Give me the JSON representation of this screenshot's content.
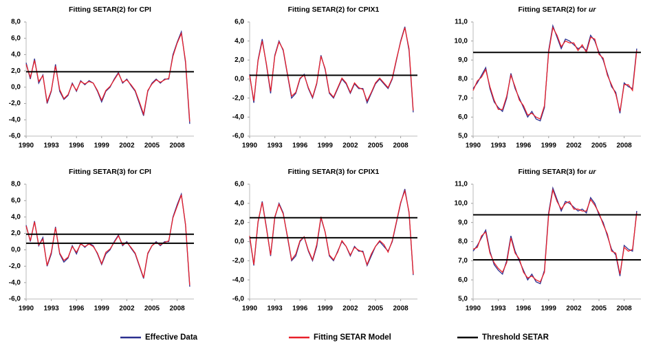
{
  "chart_data": [
    {
      "type": "line",
      "title": "Fitting SETAR(2) for CPI",
      "x": [
        1990,
        1990.5,
        1991,
        1991.5,
        1992,
        1992.5,
        1993,
        1993.5,
        1994,
        1994.5,
        1995,
        1995.5,
        1996,
        1996.5,
        1997,
        1997.5,
        1998,
        1998.5,
        1999,
        1999.5,
        2000,
        2000.5,
        2001,
        2001.5,
        2002,
        2002.5,
        2003,
        2003.5,
        2004,
        2004.5,
        2005,
        2005.5,
        2006,
        2006.5,
        2007,
        2007.5,
        2008,
        2008.5,
        2009,
        2009.5
      ],
      "series": [
        {
          "color": "#2b2f8f",
          "values": [
            3.0,
            1.0,
            3.5,
            0.5,
            1.5,
            -2.0,
            -0.5,
            2.8,
            -0.5,
            -1.5,
            -1.0,
            0.5,
            -0.5,
            0.8,
            0.3,
            0.8,
            0.5,
            -0.5,
            -1.8,
            -0.5,
            0.0,
            1.0,
            1.8,
            0.5,
            1.0,
            0.2,
            -0.5,
            -2.0,
            -3.5,
            -0.5,
            0.5,
            1.0,
            0.5,
            1.0,
            1.0,
            4.0,
            5.5,
            6.8,
            3.0,
            -4.5
          ]
        },
        {
          "color": "#e8202a",
          "values": [
            2.8,
            1.2,
            3.3,
            0.7,
            1.4,
            -1.8,
            -0.4,
            2.6,
            -0.3,
            -1.4,
            -0.9,
            0.4,
            -0.4,
            0.7,
            0.4,
            0.7,
            0.5,
            -0.4,
            -1.6,
            -0.4,
            0.1,
            0.9,
            1.7,
            0.6,
            0.9,
            0.3,
            -0.4,
            -1.8,
            -3.3,
            -0.4,
            0.4,
            0.9,
            0.6,
            0.9,
            1.1,
            3.8,
            5.4,
            6.6,
            3.2,
            -4.2
          ]
        }
      ],
      "thresholds": [
        1.9
      ],
      "xlim": [
        1990,
        2010
      ],
      "xticks": [
        1990,
        1993,
        1996,
        1999,
        2002,
        2005,
        2008
      ],
      "ylim": [
        -6,
        8
      ],
      "yticks": [
        {
          "value": -6,
          "label": "-6,0"
        },
        {
          "value": -4,
          "label": "-4,0"
        },
        {
          "value": -2,
          "label": "-2,0"
        },
        {
          "value": 0,
          "label": "0,0"
        },
        {
          "value": 2,
          "label": "2,0"
        },
        {
          "value": 4,
          "label": "4,0"
        },
        {
          "value": 6,
          "label": "6,0"
        },
        {
          "value": 8,
          "label": "8,0"
        }
      ]
    },
    {
      "type": "line",
      "title": "Fitting SETAR(2) for CPIX1",
      "x": [
        1990,
        1990.5,
        1991,
        1991.5,
        1992,
        1992.5,
        1993,
        1993.5,
        1994,
        1994.5,
        1995,
        1995.5,
        1996,
        1996.5,
        1997,
        1997.5,
        1998,
        1998.5,
        1999,
        1999.5,
        2000,
        2000.5,
        2001,
        2001.5,
        2002,
        2002.5,
        2003,
        2003.5,
        2004,
        2004.5,
        2005,
        2005.5,
        2006,
        2006.5,
        2007,
        2007.5,
        2008,
        2008.5,
        2009,
        2009.5
      ],
      "series": [
        {
          "color": "#2b2f8f",
          "values": [
            0.5,
            -2.5,
            2.0,
            4.2,
            1.5,
            -1.5,
            2.5,
            4.0,
            3.0,
            0.5,
            -2.0,
            -1.5,
            0.0,
            0.5,
            -1.0,
            -2.0,
            -0.5,
            2.5,
            1.0,
            -1.5,
            -2.0,
            -1.0,
            0.0,
            -0.5,
            -1.5,
            -0.5,
            -1.0,
            -1.0,
            -2.5,
            -1.5,
            -0.5,
            0.0,
            -0.5,
            -1.0,
            0.0,
            2.0,
            4.0,
            5.5,
            3.0,
            -3.5
          ]
        },
        {
          "color": "#e8202a",
          "values": [
            0.4,
            -2.3,
            1.9,
            4.0,
            1.6,
            -1.3,
            2.4,
            3.9,
            3.1,
            0.6,
            -1.8,
            -1.4,
            0.1,
            0.4,
            -0.9,
            -1.9,
            -0.4,
            2.4,
            1.1,
            -1.4,
            -1.9,
            -0.9,
            0.1,
            -0.4,
            -1.4,
            -0.4,
            -0.9,
            -1.1,
            -2.3,
            -1.4,
            -0.4,
            0.1,
            -0.4,
            -0.9,
            0.1,
            2.1,
            3.9,
            5.4,
            3.2,
            -3.3
          ]
        }
      ],
      "thresholds": [
        0.4
      ],
      "xlim": [
        1990,
        2010
      ],
      "xticks": [
        1990,
        1993,
        1996,
        1999,
        2002,
        2005,
        2008
      ],
      "ylim": [
        -6,
        6
      ],
      "yticks": [
        {
          "value": -6,
          "label": "-6,0"
        },
        {
          "value": -4,
          "label": "-4,0"
        },
        {
          "value": -2,
          "label": "-2,0"
        },
        {
          "value": 0,
          "label": "0,0"
        },
        {
          "value": 2,
          "label": "2,0"
        },
        {
          "value": 4,
          "label": "4,0"
        },
        {
          "value": 6,
          "label": "6,0"
        }
      ]
    },
    {
      "type": "line",
      "title": "Fitting SETAR(2) for",
      "title_variable": "ur",
      "x": [
        1990,
        1990.5,
        1991,
        1991.5,
        1992,
        1992.5,
        1993,
        1993.5,
        1994,
        1994.5,
        1995,
        1995.5,
        1996,
        1996.5,
        1997,
        1997.5,
        1998,
        1998.5,
        1999,
        1999.5,
        2000,
        2000.5,
        2001,
        2001.5,
        2002,
        2002.5,
        2003,
        2003.5,
        2004,
        2004.5,
        2005,
        2005.5,
        2006,
        2006.5,
        2007,
        2007.5,
        2008,
        2008.5,
        2009,
        2009.5
      ],
      "series": [
        {
          "color": "#2b2f8f",
          "values": [
            7.5,
            7.8,
            8.2,
            8.6,
            7.5,
            6.8,
            6.5,
            6.3,
            7.0,
            8.3,
            7.5,
            7.0,
            6.5,
            6.0,
            6.3,
            5.9,
            5.8,
            6.5,
            9.5,
            10.8,
            10.2,
            9.6,
            10.1,
            10.0,
            9.8,
            9.6,
            9.7,
            9.5,
            10.3,
            10.0,
            9.4,
            9.0,
            8.3,
            7.6,
            7.3,
            6.2,
            7.8,
            7.6,
            7.5,
            9.6
          ]
        },
        {
          "color": "#e8202a",
          "values": [
            7.4,
            7.9,
            8.1,
            8.5,
            7.6,
            6.9,
            6.4,
            6.4,
            7.1,
            8.2,
            7.6,
            6.9,
            6.6,
            6.1,
            6.2,
            6.0,
            5.9,
            6.6,
            9.4,
            10.7,
            10.3,
            9.7,
            10.0,
            9.9,
            9.9,
            9.5,
            9.8,
            9.4,
            10.2,
            10.1,
            9.3,
            9.1,
            8.2,
            7.7,
            7.2,
            6.3,
            7.7,
            7.7,
            7.4,
            9.5
          ]
        }
      ],
      "thresholds": [
        9.4
      ],
      "xlim": [
        1990,
        2010
      ],
      "xticks": [
        1990,
        1993,
        1996,
        1999,
        2002,
        2005,
        2008
      ],
      "ylim": [
        5,
        11
      ],
      "yticks": [
        {
          "value": 5,
          "label": "5,0"
        },
        {
          "value": 6,
          "label": "6,0"
        },
        {
          "value": 7,
          "label": "7,0"
        },
        {
          "value": 8,
          "label": "8,0"
        },
        {
          "value": 9,
          "label": "9,0"
        },
        {
          "value": 10,
          "label": "10,0"
        },
        {
          "value": 11,
          "label": "11,0"
        }
      ]
    },
    {
      "type": "line",
      "title": "Fitting SETAR(3) for CPI",
      "x": [
        1990,
        1990.5,
        1991,
        1991.5,
        1992,
        1992.5,
        1993,
        1993.5,
        1994,
        1994.5,
        1995,
        1995.5,
        1996,
        1996.5,
        1997,
        1997.5,
        1998,
        1998.5,
        1999,
        1999.5,
        2000,
        2000.5,
        2001,
        2001.5,
        2002,
        2002.5,
        2003,
        2003.5,
        2004,
        2004.5,
        2005,
        2005.5,
        2006,
        2006.5,
        2007,
        2007.5,
        2008,
        2008.5,
        2009,
        2009.5
      ],
      "series": [
        {
          "color": "#2b2f8f",
          "values": [
            3.0,
            1.0,
            3.5,
            0.5,
            1.5,
            -2.0,
            -0.5,
            2.8,
            -0.5,
            -1.5,
            -1.0,
            0.5,
            -0.5,
            0.8,
            0.3,
            0.8,
            0.5,
            -0.5,
            -1.8,
            -0.5,
            0.0,
            1.0,
            1.8,
            0.5,
            1.0,
            0.2,
            -0.5,
            -2.0,
            -3.5,
            -0.5,
            0.5,
            1.0,
            0.5,
            1.0,
            1.0,
            4.0,
            5.5,
            6.8,
            3.0,
            -4.5
          ]
        },
        {
          "color": "#e8202a",
          "values": [
            2.9,
            1.1,
            3.4,
            0.6,
            1.3,
            -1.9,
            -0.3,
            2.7,
            -0.4,
            -1.3,
            -0.9,
            0.4,
            -0.3,
            0.7,
            0.4,
            0.7,
            0.4,
            -0.4,
            -1.7,
            -0.3,
            0.1,
            0.9,
            1.7,
            0.6,
            0.9,
            0.3,
            -0.4,
            -1.9,
            -3.4,
            -0.4,
            0.5,
            0.9,
            0.6,
            0.9,
            1.1,
            3.9,
            5.3,
            6.7,
            3.1,
            -4.3
          ]
        }
      ],
      "thresholds": [
        1.9,
        0.8
      ],
      "xlim": [
        1990,
        2010
      ],
      "xticks": [
        1990,
        1993,
        1996,
        1999,
        2002,
        2005,
        2008
      ],
      "ylim": [
        -6,
        8
      ],
      "yticks": [
        {
          "value": -6,
          "label": "-6,0"
        },
        {
          "value": -4,
          "label": "-4,0"
        },
        {
          "value": -2,
          "label": "-2,0"
        },
        {
          "value": 0,
          "label": "0,0"
        },
        {
          "value": 2,
          "label": "2,0"
        },
        {
          "value": 4,
          "label": "4,0"
        },
        {
          "value": 6,
          "label": "6,0"
        },
        {
          "value": 8,
          "label": "8,0"
        }
      ]
    },
    {
      "type": "line",
      "title": "Fitting SETAR(3) for CPIX1",
      "x": [
        1990,
        1990.5,
        1991,
        1991.5,
        1992,
        1992.5,
        1993,
        1993.5,
        1994,
        1994.5,
        1995,
        1995.5,
        1996,
        1996.5,
        1997,
        1997.5,
        1998,
        1998.5,
        1999,
        1999.5,
        2000,
        2000.5,
        2001,
        2001.5,
        2002,
        2002.5,
        2003,
        2003.5,
        2004,
        2004.5,
        2005,
        2005.5,
        2006,
        2006.5,
        2007,
        2007.5,
        2008,
        2008.5,
        2009,
        2009.5
      ],
      "series": [
        {
          "color": "#2b2f8f",
          "values": [
            0.5,
            -2.5,
            2.0,
            4.2,
            1.5,
            -1.5,
            2.5,
            4.0,
            3.0,
            0.5,
            -2.0,
            -1.5,
            0.0,
            0.5,
            -1.0,
            -2.0,
            -0.5,
            2.5,
            1.0,
            -1.5,
            -2.0,
            -1.0,
            0.0,
            -0.5,
            -1.5,
            -0.5,
            -1.0,
            -1.0,
            -2.5,
            -1.5,
            -0.5,
            0.0,
            -0.5,
            -1.0,
            0.0,
            2.0,
            4.0,
            5.5,
            3.0,
            -3.5
          ]
        },
        {
          "color": "#e8202a",
          "values": [
            0.6,
            -2.4,
            2.1,
            4.1,
            1.4,
            -1.4,
            2.6,
            3.9,
            2.9,
            0.6,
            -1.9,
            -1.3,
            0.1,
            0.5,
            -0.9,
            -1.9,
            -0.3,
            2.6,
            1.0,
            -1.4,
            -1.9,
            -1.1,
            0.1,
            -0.5,
            -1.4,
            -0.6,
            -0.9,
            -1.1,
            -2.4,
            -1.3,
            -0.5,
            0.1,
            -0.3,
            -1.1,
            0.1,
            2.1,
            4.1,
            5.3,
            3.1,
            -3.4
          ]
        }
      ],
      "thresholds": [
        2.5,
        0.4
      ],
      "xlim": [
        1990,
        2010
      ],
      "xticks": [
        1990,
        1993,
        1996,
        1999,
        2002,
        2005,
        2008
      ],
      "ylim": [
        -6,
        6
      ],
      "yticks": [
        {
          "value": -6,
          "label": "-6,0"
        },
        {
          "value": -4,
          "label": "-4,0"
        },
        {
          "value": -2,
          "label": "-2,0"
        },
        {
          "value": 0,
          "label": "0,0"
        },
        {
          "value": 2,
          "label": "2,0"
        },
        {
          "value": 4,
          "label": "4,0"
        },
        {
          "value": 6,
          "label": "6,0"
        }
      ]
    },
    {
      "type": "line",
      "title": "Fitting SETAR(3) for",
      "title_variable": "ur",
      "x": [
        1990,
        1990.5,
        1991,
        1991.5,
        1992,
        1992.5,
        1993,
        1993.5,
        1994,
        1994.5,
        1995,
        1995.5,
        1996,
        1996.5,
        1997,
        1997.5,
        1998,
        1998.5,
        1999,
        1999.5,
        2000,
        2000.5,
        2001,
        2001.5,
        2002,
        2002.5,
        2003,
        2003.5,
        2004,
        2004.5,
        2005,
        2005.5,
        2006,
        2006.5,
        2007,
        2007.5,
        2008,
        2008.5,
        2009,
        2009.5
      ],
      "series": [
        {
          "color": "#2b2f8f",
          "values": [
            7.5,
            7.8,
            8.2,
            8.6,
            7.5,
            6.8,
            6.5,
            6.3,
            7.0,
            8.3,
            7.5,
            7.0,
            6.5,
            6.0,
            6.3,
            5.9,
            5.8,
            6.5,
            9.5,
            10.8,
            10.2,
            9.6,
            10.1,
            10.0,
            9.8,
            9.6,
            9.7,
            9.5,
            10.3,
            10.0,
            9.4,
            9.0,
            8.3,
            7.6,
            7.3,
            6.2,
            7.8,
            7.6,
            7.5,
            9.6
          ]
        },
        {
          "color": "#e8202a",
          "values": [
            7.6,
            7.7,
            8.3,
            8.5,
            7.4,
            6.9,
            6.6,
            6.4,
            6.9,
            8.2,
            7.4,
            7.1,
            6.4,
            6.1,
            6.2,
            6.0,
            5.9,
            6.4,
            9.4,
            10.7,
            10.1,
            9.7,
            10.0,
            10.1,
            9.7,
            9.7,
            9.6,
            9.6,
            10.2,
            9.9,
            9.5,
            8.9,
            8.4,
            7.5,
            7.4,
            6.3,
            7.7,
            7.5,
            7.6,
            9.5
          ]
        }
      ],
      "thresholds": [
        9.4,
        7.05
      ],
      "xlim": [
        1990,
        2010
      ],
      "xticks": [
        1990,
        1993,
        1996,
        1999,
        2002,
        2005,
        2008
      ],
      "ylim": [
        5,
        11
      ],
      "yticks": [
        {
          "value": 5,
          "label": "5,0"
        },
        {
          "value": 6,
          "label": "6,0"
        },
        {
          "value": 7,
          "label": "7,0"
        },
        {
          "value": 8,
          "label": "8,0"
        },
        {
          "value": 9,
          "label": "9,0"
        },
        {
          "value": 10,
          "label": "10,0"
        },
        {
          "value": 11,
          "label": "11,0"
        }
      ]
    }
  ],
  "legend": [
    {
      "name": "Effective Data",
      "color": "#2b2f8f"
    },
    {
      "name": "Fitting SETAR Model",
      "color": "#e8202a"
    },
    {
      "name": "Threshold SETAR",
      "color": "#000000"
    }
  ]
}
